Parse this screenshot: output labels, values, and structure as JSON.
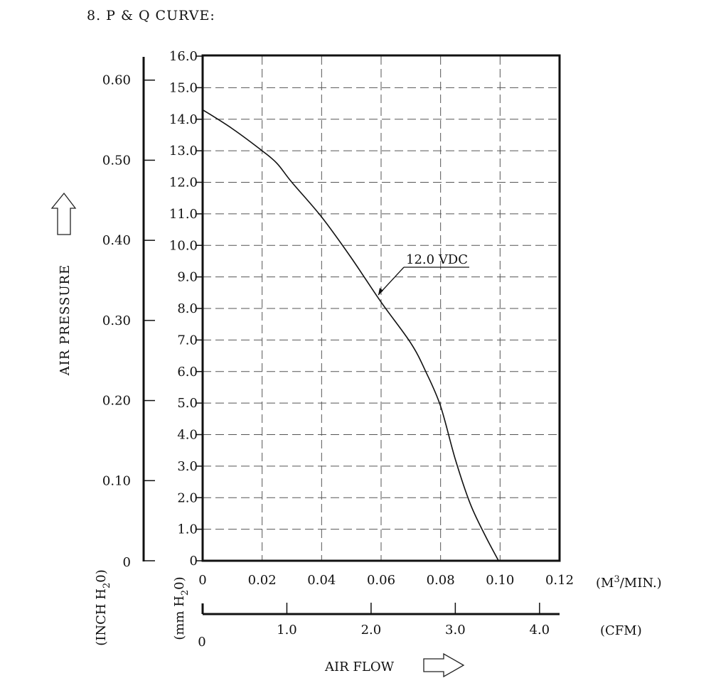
{
  "heading": "8. P & Q CURVE:",
  "chart_data": {
    "type": "line",
    "grid": true,
    "xlabel": "AIR FLOW",
    "ylabel": "AIR PRESSURE",
    "x_unit": "(M",
    "x_unit_sup": "3",
    "x_unit_end": "/MIN.)",
    "x2_unit": "(CFM)",
    "y_unit_mm": "(mm H",
    "y_unit_mm_sub": "2",
    "y_unit_mm_end": "0)",
    "y_unit_inch": "(INCH H",
    "y_unit_inch_sub": "2",
    "y_unit_inch_end": "0)",
    "xlim": [
      0,
      0.12
    ],
    "ylim": [
      0,
      16.0
    ],
    "x_ticks": [
      "0",
      "0.02",
      "0.04",
      "0.06",
      "0.08",
      "0.10",
      "0.12"
    ],
    "y_ticks": [
      "0",
      "1.0",
      "2.0",
      "3.0",
      "4.0",
      "5.0",
      "6.0",
      "7.0",
      "8.0",
      "9.0",
      "10.0",
      "11.0",
      "12.0",
      "13.0",
      "14.0",
      "15.0",
      "16.0"
    ],
    "x2_ticks": [
      "0",
      "1.0",
      "2.0",
      "3.0",
      "4.0"
    ],
    "x2_values": [
      0,
      1.0,
      2.0,
      3.0,
      4.0
    ],
    "y2_ticks": [
      "0",
      "0.10",
      "0.20",
      "0.30",
      "0.40",
      "0.50",
      "0.60"
    ],
    "y2_values": [
      0,
      0.1,
      0.2,
      0.3,
      0.4,
      0.5,
      0.6
    ],
    "series": [
      {
        "name": "12.0 VDC",
        "x": [
          0,
          0.01,
          0.02,
          0.025,
          0.03,
          0.04,
          0.05,
          0.06,
          0.07,
          0.075,
          0.08,
          0.085,
          0.09,
          0.095,
          0.0995
        ],
        "y": [
          14.3,
          13.7,
          13.0,
          12.6,
          12.0,
          10.9,
          9.6,
          8.2,
          6.9,
          6.0,
          4.9,
          3.2,
          1.8,
          0.8,
          0
        ]
      }
    ]
  }
}
